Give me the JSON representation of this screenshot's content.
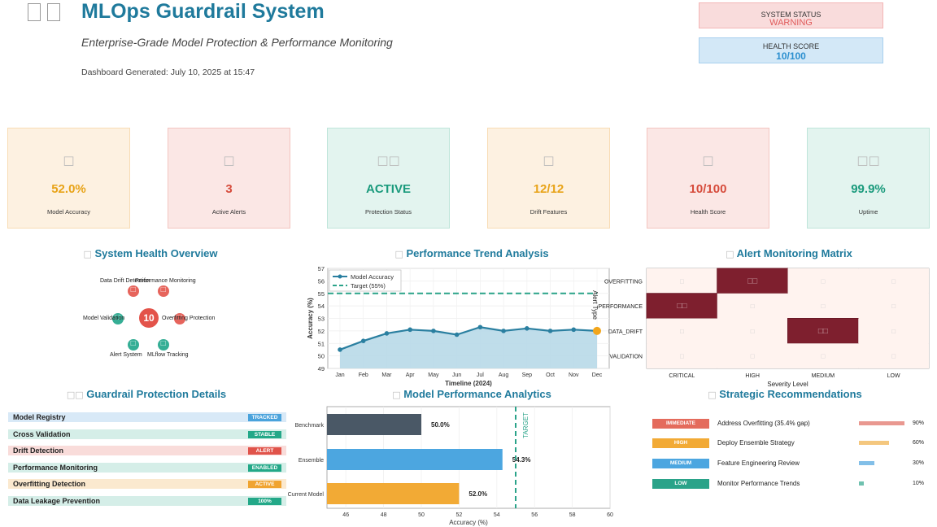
{
  "header": {
    "title": "MLOps Guardrail System",
    "subtitle": "Enterprise-Grade Model Protection & Performance Monitoring",
    "generated": "Dashboard Generated: July 10, 2025 at 15:47",
    "status_label": "SYSTEM STATUS",
    "status_value": "WARNING",
    "health_label": "HEALTH SCORE",
    "health_value": "10/100"
  },
  "kpis": [
    {
      "value": "52.0%",
      "label": "Model Accuracy",
      "color": "#e8a317",
      "bg": "#fdf1e1",
      "border": "#f8dcb4",
      "icon": "box-glyph"
    },
    {
      "value": "3",
      "label": "Active Alerts",
      "color": "#d64b3b",
      "bg": "#fbe7e5",
      "border": "#f3c5c0",
      "icon": "box-glyph"
    },
    {
      "value": "ACTIVE",
      "label": "Protection Status",
      "color": "#1a9a7c",
      "bg": "#e3f4ef",
      "border": "#bfe5da",
      "icon": "double-box-glyph"
    },
    {
      "value": "12/12",
      "label": "Drift Features",
      "color": "#e8a317",
      "bg": "#fdf1e1",
      "border": "#f8dcb4",
      "icon": "box-glyph"
    },
    {
      "value": "10/100",
      "label": "Health Score",
      "color": "#d64b3b",
      "bg": "#fbe7e5",
      "border": "#f3c5c0",
      "icon": "box-glyph"
    },
    {
      "value": "99.9%",
      "label": "Uptime",
      "color": "#1a9a7c",
      "bg": "#e3f4ef",
      "border": "#bfe5da",
      "icon": "double-box-glyph"
    }
  ],
  "health_overview": {
    "title": "System Health Overview",
    "center_value": "10",
    "nodes": [
      {
        "label": "Data Drift Detection",
        "status": "alert"
      },
      {
        "label": "Performance Monitoring",
        "status": "alert"
      },
      {
        "label": "Model Validation",
        "status": "ok"
      },
      {
        "label": "Overfitting Protection",
        "status": "alert"
      },
      {
        "label": "Alert System",
        "status": "ok"
      },
      {
        "label": "MLflow Tracking",
        "status": "ok"
      }
    ]
  },
  "colors": {
    "alert": "#e3534a",
    "ok": "#1fa58a",
    "line": "#2a7fa0",
    "target": "#2aa389",
    "fill": "#b8d9e8"
  },
  "chart_data": [
    {
      "type": "line",
      "title": "Performance Trend Analysis",
      "xlabel": "Timeline (2024)",
      "ylabel": "Accuracy (%)",
      "categories": [
        "Jan",
        "Feb",
        "Mar",
        "Apr",
        "May",
        "Jun",
        "Jul",
        "Aug",
        "Sep",
        "Oct",
        "Nov",
        "Dec"
      ],
      "series": [
        {
          "name": "Model Accuracy",
          "values": [
            50.5,
            51.2,
            51.8,
            52.1,
            52.0,
            51.7,
            52.3,
            52.0,
            52.2,
            52.0,
            52.1,
            52.0
          ]
        }
      ],
      "target": {
        "name": "Target (55%)",
        "value": 55
      },
      "ylim": [
        49,
        57
      ],
      "yticks": [
        49,
        50,
        51,
        52,
        53,
        54,
        55,
        56,
        57
      ],
      "legend": "top-left",
      "grid": true
    },
    {
      "type": "heatmap",
      "title": "Alert Monitoring Matrix",
      "xlabel": "Severity Level",
      "ylabel": "Alert Type",
      "x": [
        "CRITICAL",
        "HIGH",
        "MEDIUM",
        "LOW"
      ],
      "y": [
        "OVERFITTING",
        "PERFORMANCE",
        "DATA_DRIFT",
        "VALIDATION"
      ],
      "values": [
        [
          0,
          1,
          0,
          0
        ],
        [
          1,
          0,
          0,
          0
        ],
        [
          0,
          0,
          1,
          0
        ],
        [
          0,
          0,
          0,
          0
        ]
      ],
      "cell_glyph_high": "□□",
      "cell_glyph_low": "□"
    },
    {
      "type": "bar",
      "orientation": "horizontal",
      "title": "Model Performance Analytics",
      "xlabel": "Accuracy (%)",
      "categories": [
        "Benchmark",
        "Ensemble",
        "Current Model"
      ],
      "values": [
        50.0,
        54.3,
        52.0
      ],
      "value_labels": [
        "50.0%",
        "54.3%",
        "52.0%"
      ],
      "colors": [
        "#4a5866",
        "#4ca6e0",
        "#f2aa35"
      ],
      "target_label": "TARGET",
      "target": 55,
      "xlim": [
        45,
        60
      ],
      "xticks": [
        46,
        48,
        50,
        52,
        54,
        56,
        58,
        60
      ],
      "grid": true
    }
  ],
  "protection": {
    "title": "Guardrail Protection Details",
    "rows": [
      {
        "name": "Model Registry",
        "badge": "TRACKED",
        "bg": "#d8e9f7",
        "badge_color": "#4aa3dc"
      },
      {
        "name": "Cross Validation",
        "badge": "STABLE",
        "bg": "#d5eee8",
        "badge_color": "#23a888"
      },
      {
        "name": "Drift Detection",
        "badge": "ALERT",
        "bg": "#f9dcda",
        "badge_color": "#e0534a"
      },
      {
        "name": "Performance Monitoring",
        "badge": "ENABLED",
        "bg": "#d5eee8",
        "badge_color": "#23a888"
      },
      {
        "name": "Overfitting Detection",
        "badge": "ACTIVE",
        "bg": "#fbe9cf",
        "badge_color": "#f0a431"
      },
      {
        "name": "Data Leakage Prevention",
        "badge": "100%",
        "bg": "#d5eee8",
        "badge_color": "#23a888"
      }
    ]
  },
  "recommendations": {
    "title": "Strategic Recommendations",
    "rows": [
      {
        "priority": "IMMEDIATE",
        "text": "Address Overfitting (35.4% gap)",
        "progress": 90,
        "pct": "90%",
        "color": "#e46b5c",
        "bar": "#e99890"
      },
      {
        "priority": "HIGH",
        "text": "Deploy Ensemble Strategy",
        "progress": 60,
        "pct": "60%",
        "color": "#f2aa35",
        "bar": "#f4c77e"
      },
      {
        "priority": "MEDIUM",
        "text": "Feature Engineering Review",
        "progress": 30,
        "pct": "30%",
        "color": "#4ca6e0",
        "bar": "#82bfe8"
      },
      {
        "priority": "LOW",
        "text": "Monitor Performance Trends",
        "progress": 10,
        "pct": "10%",
        "color": "#2aa389",
        "bar": "#6fc1af"
      }
    ]
  }
}
